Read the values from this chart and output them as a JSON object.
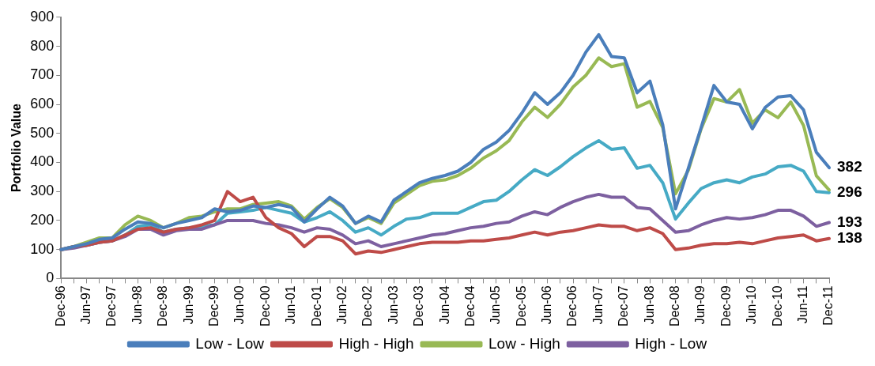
{
  "chart_data": {
    "type": "line",
    "ylabel": "Portfolio Value",
    "categories": [
      "Dec-96",
      null,
      "Jun-97",
      null,
      "Dec-97",
      null,
      "Jun-98",
      null,
      "Dec-98",
      null,
      "Jun-99",
      null,
      "Dec-99",
      null,
      "Jun-00",
      null,
      "Dec-00",
      null,
      "Jun-01",
      null,
      "Dec-01",
      null,
      "Jun-02",
      null,
      "Dec-02",
      null,
      "Jun-03",
      null,
      "Dec-03",
      null,
      "Jun-04",
      null,
      "Dec-04",
      null,
      "Jun-05",
      null,
      "Dec-05",
      null,
      "Jun-06",
      null,
      "Dec-06",
      null,
      "Jun-07",
      null,
      "Dec-07",
      null,
      "Jun-08",
      null,
      "Dec-08",
      null,
      "Jun-09",
      null,
      "Dec-09",
      null,
      "Jun-10",
      null,
      "Dec-10",
      null,
      "Jun-11",
      null,
      "Dec-11"
    ],
    "series": [
      {
        "name": "Low - Low",
        "color": "#4a7ebb",
        "values": [
          100,
          110,
          120,
          135,
          140,
          170,
          195,
          190,
          175,
          190,
          200,
          210,
          240,
          230,
          235,
          250,
          245,
          255,
          245,
          195,
          240,
          280,
          250,
          190,
          215,
          195,
          270,
          300,
          330,
          345,
          355,
          370,
          400,
          445,
          470,
          510,
          570,
          640,
          600,
          640,
          700,
          780,
          840,
          765,
          760,
          640,
          680,
          530,
          240,
          380,
          520,
          665,
          608,
          600,
          516,
          589,
          625,
          630,
          581,
          435,
          382
        ]
      },
      {
        "name": "High - High",
        "color": "#be4b48",
        "values": [
          100,
          110,
          115,
          125,
          130,
          150,
          170,
          175,
          160,
          170,
          175,
          185,
          200,
          300,
          265,
          280,
          210,
          175,
          155,
          110,
          145,
          145,
          130,
          85,
          95,
          90,
          100,
          110,
          120,
          125,
          125,
          125,
          130,
          130,
          135,
          140,
          150,
          160,
          150,
          160,
          165,
          175,
          185,
          180,
          180,
          165,
          175,
          155,
          100,
          105,
          115,
          120,
          120,
          125,
          120,
          130,
          140,
          145,
          150,
          130,
          138
        ]
      },
      {
        "name": "Low - High",
        "color": "#98b954",
        "values": [
          100,
          110,
          125,
          140,
          140,
          185,
          215,
          200,
          175,
          190,
          210,
          215,
          230,
          240,
          240,
          255,
          260,
          265,
          250,
          205,
          245,
          275,
          245,
          190,
          210,
          190,
          260,
          290,
          320,
          335,
          340,
          355,
          380,
          415,
          440,
          475,
          540,
          590,
          555,
          600,
          660,
          700,
          760,
          730,
          740,
          590,
          610,
          520,
          292,
          373,
          516,
          620,
          608,
          651,
          535,
          581,
          554,
          608,
          527,
          354,
          305
        ]
      },
      {
        "name": "High - Low",
        "color": "#7d60a0",
        "values": [
          100,
          105,
          115,
          125,
          130,
          145,
          170,
          170,
          150,
          165,
          170,
          170,
          185,
          200,
          200,
          200,
          190,
          185,
          175,
          160,
          175,
          170,
          150,
          120,
          130,
          110,
          120,
          130,
          140,
          150,
          155,
          165,
          175,
          180,
          190,
          195,
          215,
          230,
          220,
          245,
          265,
          280,
          290,
          280,
          280,
          245,
          240,
          200,
          160,
          165,
          185,
          200,
          210,
          205,
          210,
          220,
          235,
          235,
          215,
          180,
          193
        ]
      },
      {
        "color": "#46aac5",
        "values": [
          100,
          110,
          115,
          125,
          130,
          150,
          180,
          185,
          160,
          170,
          175,
          180,
          185,
          225,
          230,
          235,
          245,
          235,
          225,
          195,
          210,
          230,
          200,
          160,
          175,
          150,
          180,
          205,
          210,
          225,
          225,
          225,
          245,
          265,
          270,
          300,
          340,
          375,
          355,
          385,
          420,
          450,
          475,
          445,
          450,
          380,
          390,
          330,
          205,
          260,
          310,
          330,
          340,
          330,
          350,
          360,
          385,
          390,
          370,
          300,
          296
        ]
      }
    ],
    "ylim": [
      0,
      900
    ],
    "yticks": [
      0,
      100,
      200,
      300,
      400,
      500,
      600,
      700,
      800,
      900
    ],
    "grid": false,
    "legend": "bottom",
    "marker": "none",
    "line_style": "solid",
    "annotations": [
      {
        "text": "382",
        "x": "Dec-11",
        "y": 382
      },
      {
        "text": "296",
        "x": "Dec-11",
        "y": 296
      },
      {
        "text": "193",
        "x": "Dec-11",
        "y": 193
      },
      {
        "text": "138",
        "x": "Dec-11",
        "y": 138
      }
    ]
  }
}
